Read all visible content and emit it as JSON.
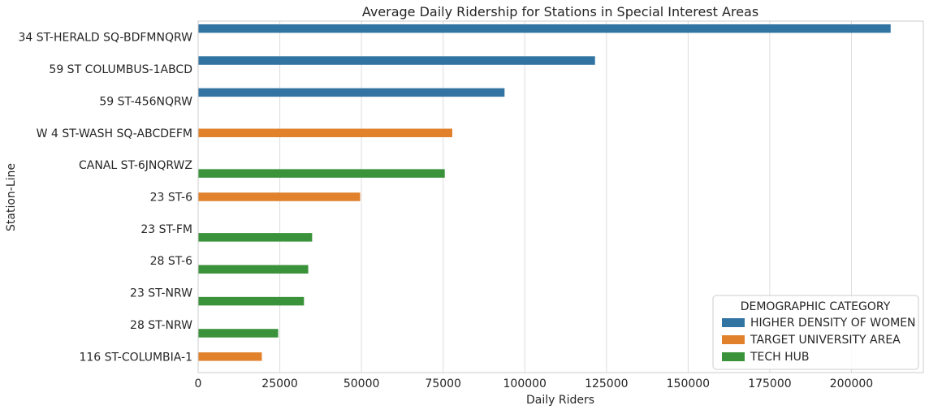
{
  "chart_data": {
    "type": "bar",
    "orientation": "horizontal",
    "title": "Average Daily Ridership for Stations in Special Interest Areas",
    "xlabel": "Daily Riders",
    "ylabel": "Station-Line",
    "xlim": [
      0,
      222000
    ],
    "xticks": [
      0,
      25000,
      50000,
      75000,
      100000,
      125000,
      150000,
      175000,
      200000
    ],
    "grid": true,
    "legend_position": "bottom-right",
    "legend_title": "DEMOGRAPHIC CATEGORY",
    "categories": [
      "34 ST-HERALD SQ-BDFMNQRW",
      "59 ST COLUMBUS-1ABCD",
      "59 ST-456NQRW",
      "W 4 ST-WASH SQ-ABCDEFM",
      "CANAL ST-6JNQRWZ",
      "23 ST-6",
      "23 ST-FM",
      "28 ST-6",
      "23 ST-NRW",
      "28 ST-NRW",
      "116 ST-COLUMBIA-1"
    ],
    "series": [
      {
        "name": "HIGHER DENSITY OF WOMEN",
        "color": "#3274a1",
        "values": [
          212000,
          121500,
          93800,
          null,
          null,
          null,
          null,
          null,
          null,
          null,
          null
        ]
      },
      {
        "name": "TARGET UNIVERSITY AREA",
        "color": "#e1812c",
        "values": [
          null,
          null,
          null,
          77800,
          null,
          49600,
          null,
          null,
          null,
          null,
          19500
        ]
      },
      {
        "name": "TECH HUB",
        "color": "#3a923a",
        "values": [
          null,
          null,
          null,
          null,
          75500,
          null,
          34900,
          33700,
          32400,
          24500,
          null
        ]
      }
    ]
  }
}
